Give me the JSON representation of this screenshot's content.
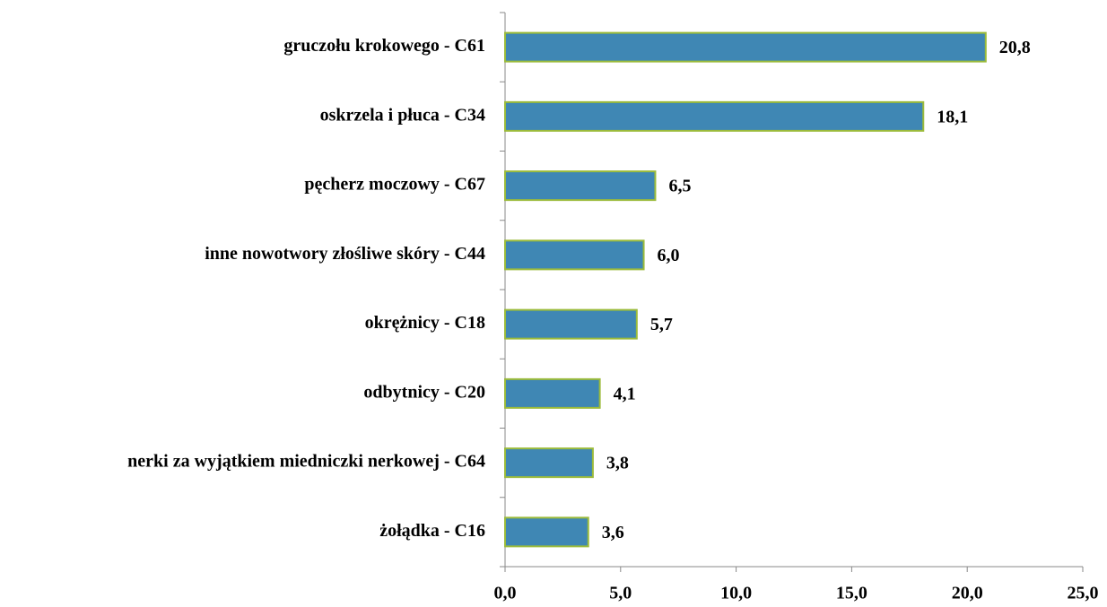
{
  "chart_data": {
    "type": "hbar",
    "categories": [
      "gruczołu krokowego - C61",
      "oskrzela i płuca - C34",
      "pęcherz moczowy - C67",
      "inne nowotwory złośliwe skóry - C44",
      "okrężnicy - C18",
      "odbytnicy - C20",
      "nerki za wyjątkiem miedniczki nerkowej - C64",
      "żołądka - C16"
    ],
    "values": [
      20.8,
      18.1,
      6.5,
      6.0,
      5.7,
      4.1,
      3.8,
      3.6
    ],
    "value_labels": [
      "20,8",
      "18,1",
      "6,5",
      "6,0",
      "5,7",
      "4,1",
      "3,8",
      "3,6"
    ],
    "color": "#3f87b4",
    "edge_color": "#9bbb3b",
    "xlim": [
      0,
      25
    ],
    "xticks": [
      {
        "value": 0,
        "label": "0,0"
      },
      {
        "value": 5,
        "label": "5,0"
      },
      {
        "value": 10,
        "label": "10,0"
      },
      {
        "value": 15,
        "label": "15,0"
      },
      {
        "value": 20,
        "label": "20,0"
      },
      {
        "value": 25,
        "label": "25,0"
      }
    ],
    "grid": false
  }
}
